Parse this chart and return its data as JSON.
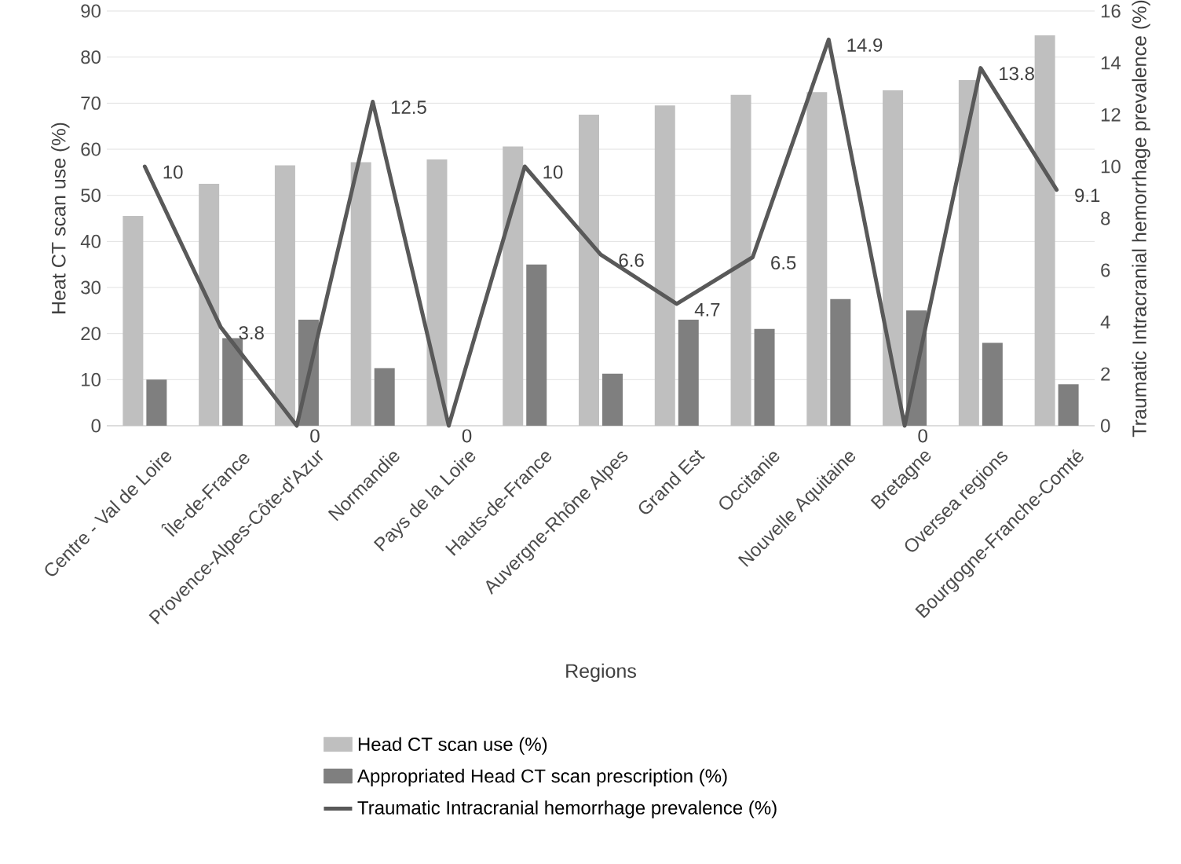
{
  "chart_data": {
    "type": "bar",
    "xlabel": "Regions",
    "ylabel": "Heat CT scan use (%)",
    "y2label": "Traumatic Intracranial hemorrhage prevalence (%)",
    "categories": [
      "Centre - Val de Loire",
      "Île-de-France",
      "Provence-Alpes-Côte-d'Azur",
      "Normandie",
      "Pays de la Loire",
      "Hauts-de-France",
      "Auvergne-Rhône Alpes",
      "Grand Est",
      "Occitanie",
      "Nouvelle Aquitaine",
      "Bretagne",
      "Oversea regions",
      "Bourgogne-Franche-Comté"
    ],
    "series": [
      {
        "name": "Head CT scan use (%)",
        "color": "#bfbfbf",
        "values": [
          45.5,
          52.5,
          56.5,
          57.2,
          57.8,
          60.6,
          67.5,
          69.5,
          71.8,
          72.4,
          72.8,
          75,
          84.7
        ]
      },
      {
        "name": "Appropriated Head CT scan prescription (%)",
        "color": "#7f7f7f",
        "values": [
          10,
          19,
          23,
          12.5,
          0,
          35,
          11.3,
          23,
          21,
          27.5,
          25,
          18,
          9
        ]
      },
      {
        "name": "Traumatic Intracranial hemorrhage prevalence (%)",
        "color": "#595959",
        "type": "line",
        "axis": "y2",
        "marker": "none",
        "values": [
          10,
          3.8,
          0,
          12.5,
          0,
          10,
          6.6,
          4.7,
          6.5,
          14.9,
          0,
          13.8,
          9.1
        ],
        "value_labels": [
          "10",
          "3.8",
          "0",
          "12.5",
          "0",
          "10",
          "6.6",
          "4.7",
          "6.5",
          "14.9",
          "0",
          "13.8",
          "9.1"
        ]
      }
    ],
    "ylim": [
      0,
      90
    ],
    "yticks": [
      0,
      10,
      20,
      30,
      40,
      50,
      60,
      70,
      80,
      90
    ],
    "y2lim": [
      0,
      16
    ],
    "y2ticks": [
      0,
      2,
      4,
      6,
      8,
      10,
      12,
      14,
      16
    ],
    "grid": "y",
    "legend": "bottom"
  }
}
